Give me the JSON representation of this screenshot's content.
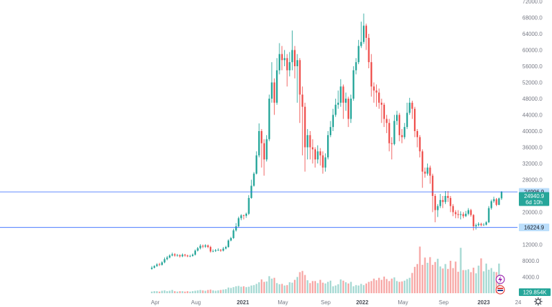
{
  "chart_data": {
    "type": "candlestick",
    "y_axis": {
      "min": 0,
      "max": 72000,
      "ticks": [
        4000,
        8000,
        12000,
        16000,
        20000,
        24000,
        28000,
        32000,
        36000,
        40000,
        44000,
        48000,
        52000,
        56000,
        60000,
        64000,
        68000,
        72000
      ],
      "tick_labels": [
        "4000.0",
        "8000.0",
        "12000.0",
        "",
        "20000.0",
        "",
        "28000.0",
        "32000.0",
        "36000.0",
        "40000.0",
        "44000.0",
        "48000.0",
        "52000.0",
        "56000.0",
        "60000.0",
        "64000.0",
        "68000.0",
        "72000.0"
      ]
    },
    "x_axis": {
      "labels": [
        {
          "text": "Apr",
          "bold": false
        },
        {
          "text": "Aug",
          "bold": false
        },
        {
          "text": "2021",
          "bold": true
        },
        {
          "text": "May",
          "bold": false
        },
        {
          "text": "Sep",
          "bold": false
        },
        {
          "text": "2022",
          "bold": true
        },
        {
          "text": "May",
          "bold": false
        },
        {
          "text": "Sep",
          "bold": false
        },
        {
          "text": "2023",
          "bold": true
        },
        {
          "text": "24",
          "bold": false
        }
      ]
    },
    "horizontal_lines": [
      {
        "value": 24996.9,
        "label": "24996.9",
        "color": "#2962ff"
      },
      {
        "value": 16224.9,
        "label": "16224.9",
        "color": "#2962ff"
      }
    ],
    "price_tag": {
      "value": 24940.9,
      "label": "24940.9",
      "sublabel": "6d 10h",
      "color": "#26a69a"
    },
    "volume_tag": {
      "label": "129.854K",
      "color": "#26a69a"
    },
    "colors": {
      "up": "#26a69a",
      "down": "#ef5350",
      "up_volume": "#a6d9d3",
      "down_volume": "#f7a9a7"
    },
    "candles": [
      [
        6000,
        6300,
        6700,
        5800
      ],
      [
        6300,
        6700,
        6900,
        6100
      ],
      [
        6700,
        7100,
        7400,
        6500
      ],
      [
        7100,
        7000,
        7500,
        6700
      ],
      [
        7000,
        7600,
        7900,
        6800
      ],
      [
        7600,
        8400,
        8800,
        7400
      ],
      [
        8400,
        8800,
        9200,
        8100
      ],
      [
        8800,
        9300,
        9600,
        8600
      ],
      [
        9300,
        9600,
        10000,
        9100
      ],
      [
        9600,
        9300,
        9900,
        9000
      ],
      [
        9300,
        9400,
        9700,
        9000
      ],
      [
        9400,
        9100,
        9600,
        8800
      ],
      [
        9100,
        9500,
        9800,
        8900
      ],
      [
        9500,
        9300,
        9700,
        9000
      ],
      [
        9300,
        9100,
        9500,
        8900
      ],
      [
        9100,
        9200,
        9500,
        8900
      ],
      [
        9200,
        9500,
        9800,
        9000
      ],
      [
        9500,
        10500,
        10800,
        9300
      ],
      [
        10500,
        11100,
        11400,
        10300
      ],
      [
        11100,
        11700,
        12100,
        10800
      ],
      [
        11700,
        11500,
        12000,
        11100
      ],
      [
        11500,
        11800,
        12100,
        11200
      ],
      [
        11800,
        11400,
        12000,
        11100
      ],
      [
        11400,
        10300,
        11700,
        10000
      ],
      [
        10300,
        10400,
        10800,
        10100
      ],
      [
        10400,
        10600,
        10900,
        10200
      ],
      [
        10600,
        10700,
        11100,
        10400
      ],
      [
        10700,
        10500,
        10900,
        10200
      ],
      [
        10500,
        11000,
        11400,
        10300
      ],
      [
        11000,
        11400,
        11700,
        10800
      ],
      [
        11400,
        13000,
        13300,
        11200
      ],
      [
        13000,
        13600,
        13900,
        12800
      ],
      [
        13600,
        15500,
        15900,
        13400
      ],
      [
        15500,
        16500,
        17300,
        15200
      ],
      [
        16500,
        18500,
        18900,
        16300
      ],
      [
        18500,
        19200,
        19500,
        18000
      ],
      [
        19200,
        19100,
        19400,
        18200
      ],
      [
        19100,
        19600,
        19900,
        18600
      ],
      [
        19600,
        23500,
        24200,
        19300
      ],
      [
        23500,
        26500,
        28000,
        23300
      ],
      [
        26500,
        29500,
        29900,
        26300
      ],
      [
        29500,
        34000,
        35000,
        29300
      ],
      [
        34000,
        40000,
        41900,
        33500
      ],
      [
        40000,
        37000,
        40500,
        31000
      ],
      [
        37000,
        33000,
        38000,
        29000
      ],
      [
        33000,
        38000,
        39000,
        32500
      ],
      [
        38000,
        48000,
        49000,
        37500
      ],
      [
        48000,
        52000,
        57000,
        47000
      ],
      [
        52000,
        47000,
        53000,
        44000
      ],
      [
        47000,
        55000,
        58000,
        46500
      ],
      [
        55000,
        59000,
        61700,
        54000
      ],
      [
        59000,
        57500,
        61000,
        55000
      ],
      [
        57500,
        58000,
        60000,
        56000
      ],
      [
        58000,
        55000,
        59000,
        51000
      ],
      [
        55000,
        57000,
        59500,
        53500
      ],
      [
        57000,
        60000,
        64800,
        55000
      ],
      [
        60000,
        56000,
        61000,
        53000
      ],
      [
        56000,
        57500,
        59000,
        47000
      ],
      [
        57500,
        49000,
        58000,
        42000
      ],
      [
        49000,
        46000,
        51000,
        34000
      ],
      [
        46000,
        36000,
        47000,
        30000
      ],
      [
        36000,
        39000,
        40500,
        33000
      ],
      [
        39000,
        36000,
        40000,
        33000
      ],
      [
        36000,
        35500,
        38000,
        32000
      ],
      [
        35500,
        33000,
        36000,
        31000
      ],
      [
        33000,
        35000,
        36500,
        32000
      ],
      [
        35000,
        34000,
        35800,
        31500
      ],
      [
        34000,
        31000,
        35000,
        29500
      ],
      [
        31000,
        33500,
        34500,
        30000
      ],
      [
        33500,
        39000,
        40000,
        33000
      ],
      [
        39000,
        41000,
        42500,
        38500
      ],
      [
        41000,
        44000,
        45500,
        40000
      ],
      [
        44000,
        46500,
        48000,
        43500
      ],
      [
        46500,
        47000,
        50000,
        45500
      ],
      [
        47000,
        51000,
        52800,
        46000
      ],
      [
        51000,
        47000,
        51500,
        43000
      ],
      [
        47000,
        48000,
        49500,
        45000
      ],
      [
        48000,
        43000,
        48500,
        41000
      ],
      [
        43000,
        48000,
        49000,
        42000
      ],
      [
        48000,
        55000,
        56000,
        47500
      ],
      [
        55000,
        57000,
        58000,
        54000
      ],
      [
        57000,
        61000,
        62500,
        56500
      ],
      [
        61000,
        62000,
        67000,
        60500
      ],
      [
        62000,
        66000,
        69000,
        61500
      ],
      [
        66000,
        63000,
        66500,
        60000
      ],
      [
        63000,
        57000,
        64000,
        55500
      ],
      [
        57000,
        51000,
        59000,
        48500
      ],
      [
        51000,
        50000,
        52000,
        47000
      ],
      [
        50000,
        49500,
        51500,
        46000
      ],
      [
        49500,
        47000,
        50500,
        45500
      ],
      [
        47000,
        46500,
        48000,
        42000
      ],
      [
        46500,
        43000,
        47000,
        41000
      ],
      [
        43000,
        42000,
        44000,
        39500
      ],
      [
        42000,
        37000,
        43000,
        35000
      ],
      [
        37000,
        36800,
        38500,
        33000
      ],
      [
        36800,
        42500,
        44000,
        36500
      ],
      [
        42500,
        44000,
        45000,
        41500
      ],
      [
        44000,
        39000,
        44500,
        37500
      ],
      [
        39000,
        38500,
        40500,
        37000
      ],
      [
        38500,
        41000,
        42000,
        38000
      ],
      [
        41000,
        44500,
        47000,
        40500
      ],
      [
        44500,
        47000,
        48200,
        44000
      ],
      [
        47000,
        45500,
        47500,
        43000
      ],
      [
        45500,
        40000,
        46000,
        38500
      ],
      [
        40000,
        38500,
        40500,
        36000
      ],
      [
        38500,
        35000,
        39000,
        33500
      ],
      [
        35000,
        30000,
        35500,
        26000
      ],
      [
        30000,
        29500,
        31000,
        28500
      ],
      [
        29500,
        31000,
        32000,
        29000
      ],
      [
        31000,
        29000,
        31500,
        27000
      ],
      [
        29000,
        24000,
        29500,
        20000
      ],
      [
        24000,
        20500,
        24500,
        17500
      ],
      [
        20500,
        21500,
        22000,
        18800
      ],
      [
        21500,
        23000,
        24500,
        21000
      ],
      [
        23000,
        22500,
        24000,
        21000
      ],
      [
        22500,
        24000,
        25200,
        22000
      ],
      [
        24000,
        23500,
        25200,
        22500
      ],
      [
        23500,
        21500,
        24000,
        20000
      ],
      [
        21500,
        20000,
        22000,
        19000
      ],
      [
        20000,
        19500,
        20500,
        18500
      ],
      [
        19500,
        19300,
        20500,
        18500
      ],
      [
        19300,
        19500,
        20200,
        18200
      ],
      [
        19500,
        19000,
        20000,
        18500
      ],
      [
        19000,
        19600,
        20300,
        18800
      ],
      [
        19600,
        20500,
        21000,
        19200
      ],
      [
        20500,
        19300,
        20800,
        18900
      ],
      [
        19300,
        16500,
        19500,
        15500
      ],
      [
        16500,
        16800,
        17200,
        15700
      ],
      [
        16800,
        17100,
        17500,
        16500
      ],
      [
        17100,
        16800,
        17400,
        16500
      ],
      [
        16800,
        16900,
        17300,
        16600
      ],
      [
        16900,
        17500,
        17800,
        16700
      ],
      [
        17500,
        21000,
        21500,
        17300
      ],
      [
        21000,
        22700,
        23100,
        20600
      ],
      [
        22700,
        23200,
        23800,
        22300
      ],
      [
        23200,
        21800,
        23500,
        21500
      ],
      [
        21800,
        23400,
        23600,
        21700
      ],
      [
        23400,
        24940.9,
        25200,
        23000
      ]
    ],
    "volumes": [
      400,
      500,
      500,
      400,
      600,
      700,
      500,
      600,
      800,
      500,
      400,
      500,
      500,
      400,
      500,
      400,
      500,
      600,
      700,
      800,
      700,
      600,
      800,
      900,
      700,
      600,
      700,
      800,
      900,
      1000,
      1400,
      1300,
      1500,
      1700,
      1800,
      1600,
      1700,
      1500,
      1600,
      1900,
      2000,
      2300,
      2700,
      3400,
      2800,
      2900,
      4200,
      3600,
      3800,
      2500,
      2200,
      2300,
      1900,
      2000,
      2700,
      2600,
      3300,
      4000,
      5200,
      5500,
      4500,
      3200,
      2500,
      3000,
      3000,
      2500,
      3300,
      2600,
      2400,
      2800,
      3100,
      1700,
      1900,
      2200,
      3400,
      3100,
      2700,
      2400,
      2800,
      1700,
      2000,
      1900,
      2300,
      2000,
      2400,
      2800,
      3000,
      3600,
      3200,
      3800,
      3300,
      4100,
      3500,
      3000,
      3600,
      3900,
      3000,
      2800,
      2900,
      3100,
      3500,
      3800,
      5000,
      6500,
      7200,
      11500,
      7000,
      8800,
      7500,
      8900,
      7000,
      7700,
      8500,
      6600,
      6100,
      7200,
      6000,
      8000,
      6200,
      7800,
      5300,
      11200,
      5700,
      5700,
      5900,
      5200,
      6300,
      4900,
      6800,
      8600,
      5400,
      7300,
      5800,
      6200,
      5300,
      5200,
      7300
    ]
  }
}
